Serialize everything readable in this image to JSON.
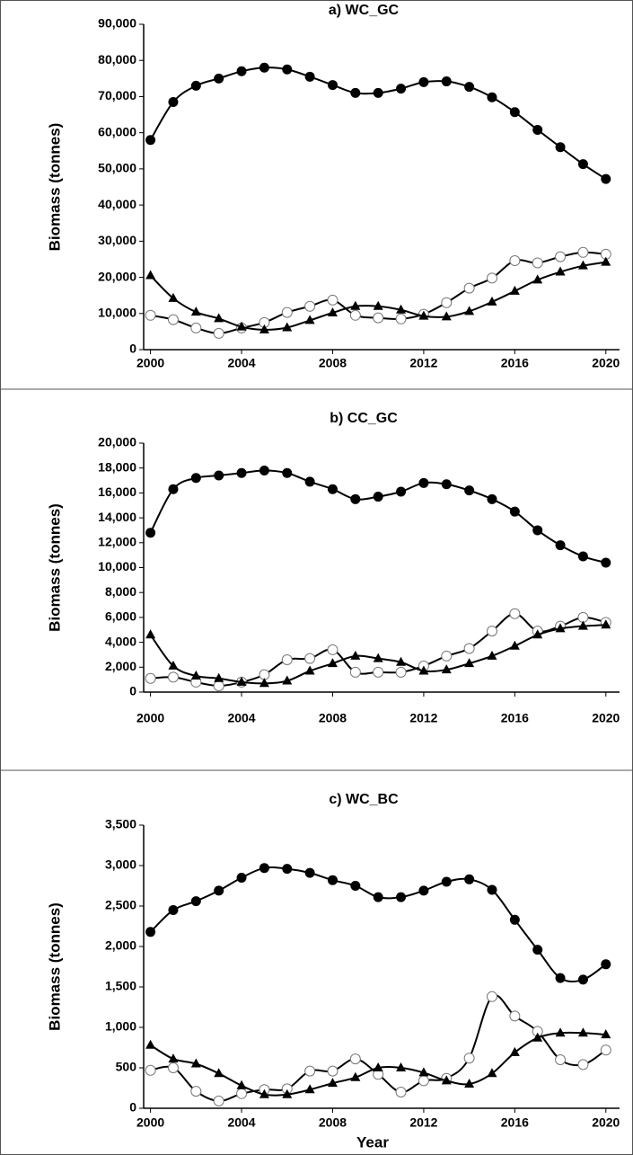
{
  "chart_data": [
    {
      "type": "line",
      "title": "a) WC_GC",
      "y_label": "Biomass (tonnes)",
      "x": [
        2000,
        2001,
        2002,
        2003,
        2004,
        2005,
        2006,
        2007,
        2008,
        2009,
        2010,
        2011,
        2012,
        2013,
        2014,
        2015,
        2016,
        2017,
        2018,
        2019,
        2020
      ],
      "xlim": [
        1999.7,
        2020.6
      ],
      "xticks": [
        2000,
        2004,
        2008,
        2012,
        2016,
        2020
      ],
      "ylim": [
        0,
        90000
      ],
      "yticks": [
        0,
        {
          "value": 10000,
          "label": "10,000"
        },
        {
          "value": 20000,
          "label": "20,000"
        },
        {
          "value": 30000,
          "label": "30,000"
        },
        {
          "value": 40000,
          "label": "40,000"
        },
        {
          "value": 50000,
          "label": "50,000"
        },
        {
          "value": 60000,
          "label": "60,000"
        },
        {
          "value": 70000,
          "label": "70,000"
        },
        {
          "value": 80000,
          "label": "80,000"
        },
        {
          "value": 90000,
          "label": "90,000"
        }
      ],
      "grid": false,
      "smooth": true,
      "series": [
        {
          "color": "#000000",
          "marker": "filled-circle",
          "values": [
            58000,
            68500,
            73000,
            75000,
            77000,
            78000,
            77500,
            75500,
            73200,
            71000,
            71000,
            72200,
            74000,
            74200,
            72700,
            69800,
            65700,
            60800,
            56000,
            51300,
            47200
          ]
        },
        {
          "color": "#000000",
          "marker": "open-circle",
          "values": [
            9500,
            8300,
            6000,
            4500,
            6000,
            7500,
            10300,
            12000,
            13700,
            9500,
            8800,
            8500,
            9800,
            13000,
            17000,
            19800,
            24600,
            24000,
            25700,
            26900,
            26400
          ]
        },
        {
          "color": "#000000",
          "marker": "triangle",
          "values": [
            20500,
            14200,
            10400,
            8600,
            6300,
            5500,
            6100,
            8100,
            10200,
            12000,
            12000,
            11000,
            9300,
            9100,
            10600,
            13200,
            16200,
            19300,
            21500,
            23200,
            24200
          ]
        }
      ]
    },
    {
      "type": "line",
      "title": "b) CC_GC",
      "y_label": "Biomass (tonnes)",
      "x": [
        2000,
        2001,
        2002,
        2003,
        2004,
        2005,
        2006,
        2007,
        2008,
        2009,
        2010,
        2011,
        2012,
        2013,
        2014,
        2015,
        2016,
        2017,
        2018,
        2019,
        2020
      ],
      "xlim": [
        1999.7,
        2020.6
      ],
      "xticks": [
        2000,
        2004,
        2008,
        2012,
        2016,
        2020
      ],
      "ylim": [
        0,
        20000
      ],
      "yticks": [
        0,
        {
          "value": 2000,
          "label": "2,000"
        },
        {
          "value": 4000,
          "label": "4,000"
        },
        {
          "value": 6000,
          "label": "6,000"
        },
        {
          "value": 8000,
          "label": "8,000"
        },
        {
          "value": 10000,
          "label": "10,000"
        },
        {
          "value": 12000,
          "label": "12,000"
        },
        {
          "value": 14000,
          "label": "14,000"
        },
        {
          "value": 16000,
          "label": "16,000"
        },
        {
          "value": 18000,
          "label": "18,000"
        },
        {
          "value": 20000,
          "label": "20,000"
        }
      ],
      "grid": false,
      "smooth": true,
      "series": [
        {
          "color": "#000000",
          "marker": "filled-circle",
          "values": [
            12800,
            16300,
            17200,
            17400,
            17600,
            17800,
            17600,
            16900,
            16300,
            15500,
            15700,
            16100,
            16800,
            16700,
            16200,
            15500,
            14500,
            13000,
            11800,
            10900,
            10400
          ]
        },
        {
          "color": "#000000",
          "marker": "open-circle",
          "values": [
            1100,
            1200,
            800,
            500,
            800,
            1400,
            2600,
            2700,
            3400,
            1600,
            1600,
            1600,
            2100,
            2900,
            3500,
            4900,
            6300,
            4900,
            5300,
            6000,
            5600
          ]
        },
        {
          "color": "#000000",
          "marker": "triangle",
          "values": [
            4600,
            2100,
            1300,
            1100,
            800,
            700,
            900,
            1700,
            2300,
            2900,
            2700,
            2400,
            1700,
            1800,
            2300,
            2900,
            3700,
            4600,
            5100,
            5300,
            5400
          ]
        }
      ]
    },
    {
      "type": "line",
      "title": "c) WC_BC",
      "y_label": "Biomass (tonnes)",
      "x_label": "Year",
      "x": [
        2000,
        2001,
        2002,
        2003,
        2004,
        2005,
        2006,
        2007,
        2008,
        2009,
        2010,
        2011,
        2012,
        2013,
        2014,
        2015,
        2016,
        2017,
        2018,
        2019,
        2020
      ],
      "xlim": [
        1999.7,
        2020.6
      ],
      "xticks": [
        2000,
        2004,
        2008,
        2012,
        2016,
        2020
      ],
      "ylim": [
        0,
        3500
      ],
      "yticks": [
        0,
        500,
        {
          "value": 1000,
          "label": "1,000"
        },
        {
          "value": 1500,
          "label": "1,500"
        },
        {
          "value": 2000,
          "label": "2,000"
        },
        {
          "value": 2500,
          "label": "2,500"
        },
        {
          "value": 3000,
          "label": "3,000"
        },
        {
          "value": 3500,
          "label": "3,500"
        }
      ],
      "grid": false,
      "smooth": true,
      "series": [
        {
          "color": "#000000",
          "marker": "filled-circle",
          "values": [
            2180,
            2450,
            2560,
            2690,
            2850,
            2970,
            2960,
            2910,
            2820,
            2750,
            2610,
            2610,
            2690,
            2800,
            2830,
            2700,
            2330,
            1960,
            1610,
            1590,
            1780
          ]
        },
        {
          "color": "#000000",
          "marker": "open-circle",
          "values": [
            470,
            500,
            210,
            90,
            180,
            230,
            240,
            460,
            460,
            610,
            420,
            200,
            340,
            370,
            620,
            1380,
            1140,
            950,
            600,
            540,
            720
          ]
        },
        {
          "color": "#000000",
          "marker": "triangle",
          "values": [
            780,
            610,
            550,
            430,
            280,
            170,
            170,
            230,
            310,
            380,
            500,
            500,
            440,
            340,
            300,
            430,
            690,
            870,
            930,
            930,
            910
          ]
        }
      ]
    }
  ]
}
